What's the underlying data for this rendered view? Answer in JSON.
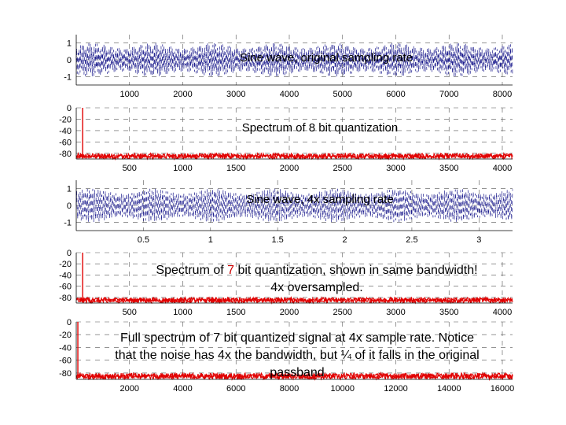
{
  "chart_data": [
    {
      "type": "line",
      "title": "Sine wave, original sampling rate",
      "series": [
        {
          "color": "#1a1a8c"
        }
      ],
      "xlim": [
        0,
        8192
      ],
      "ylim": [
        -1.5,
        1.5
      ],
      "xticks": [
        "1000",
        "2000",
        "3000",
        "4000",
        "5000",
        "6000",
        "7000",
        "8000"
      ],
      "xtick_values": [
        1000,
        2000,
        3000,
        4000,
        5000,
        6000,
        7000,
        8000
      ],
      "yticks": [
        "1",
        "0",
        "-1"
      ],
      "ytick_values": [
        1,
        0,
        -1
      ],
      "grid": true
    },
    {
      "type": "line",
      "title": "Spectrum of 8 bit quantization",
      "series": [
        {
          "color": "#e00000"
        }
      ],
      "xlim": [
        0,
        4096
      ],
      "ylim": [
        -90,
        0
      ],
      "noise_floor_db": -85,
      "peak": {
        "x": 60,
        "y": 0
      },
      "xticks": [
        "500",
        "1000",
        "1500",
        "2000",
        "2500",
        "3000",
        "3500",
        "4000"
      ],
      "xtick_values": [
        500,
        1000,
        1500,
        2000,
        2500,
        3000,
        3500,
        4000
      ],
      "yticks": [
        "0",
        "-20",
        "-40",
        "-60",
        "-80"
      ],
      "ytick_values": [
        0,
        -20,
        -40,
        -60,
        -80
      ],
      "grid": true
    },
    {
      "type": "line",
      "title": "Sine wave, 4x sampling rate",
      "series": [
        {
          "color": "#1a1a8c"
        }
      ],
      "xlim": [
        0,
        3.25
      ],
      "ylim": [
        -1.5,
        1.5
      ],
      "xticks": [
        "0.5",
        "1",
        "1.5",
        "2",
        "2.5",
        "3"
      ],
      "xtick_values": [
        0.5,
        1,
        1.5,
        2,
        2.5,
        3
      ],
      "yticks": [
        "1",
        "0",
        "-1"
      ],
      "ytick_values": [
        1,
        0,
        -1
      ],
      "grid": true
    },
    {
      "type": "line",
      "title_parts": [
        "Spectrum of ",
        "7",
        " bit quantization, shown in same bandwidth!"
      ],
      "title_line2": "4x oversampled.",
      "series": [
        {
          "color": "#e00000"
        }
      ],
      "xlim": [
        0,
        4096
      ],
      "ylim": [
        -90,
        0
      ],
      "noise_floor_db": -85,
      "peak": {
        "x": 60,
        "y": 0
      },
      "xticks": [
        "500",
        "1000",
        "1500",
        "2000",
        "2500",
        "3000",
        "3500",
        "4000"
      ],
      "xtick_values": [
        500,
        1000,
        1500,
        2000,
        2500,
        3000,
        3500,
        4000
      ],
      "yticks": [
        "0",
        "-20",
        "-40",
        "-60",
        "-80"
      ],
      "ytick_values": [
        0,
        -20,
        -40,
        -60,
        -80
      ],
      "grid": true
    },
    {
      "type": "line",
      "title_lines": [
        "Full spectrum of 7 bit quantized signal at 4x sample rate. Notice",
        "that the noise has 4x the bandwidth, but ¼ of it falls in the original",
        "passband"
      ],
      "series": [
        {
          "color": "#e00000"
        }
      ],
      "xlim": [
        0,
        16384
      ],
      "ylim": [
        -90,
        0
      ],
      "noise_floor_db": -85,
      "peak": {
        "x": 60,
        "y": 0
      },
      "xticks": [
        "2000",
        "4000",
        "6000",
        "8000",
        "10000",
        "12000",
        "14000",
        "16000"
      ],
      "xtick_values": [
        2000,
        4000,
        6000,
        8000,
        10000,
        12000,
        14000,
        16000
      ],
      "yticks": [
        "0",
        "-20",
        "-40",
        "-60",
        "-80"
      ],
      "ytick_values": [
        0,
        -20,
        -40,
        -60,
        -80
      ],
      "grid": true
    }
  ],
  "colors": {
    "sine": "#1a1a8c",
    "spectrum": "#e00000",
    "highlight": "#cc0000",
    "grid": "#555555",
    "text": "#000000"
  }
}
